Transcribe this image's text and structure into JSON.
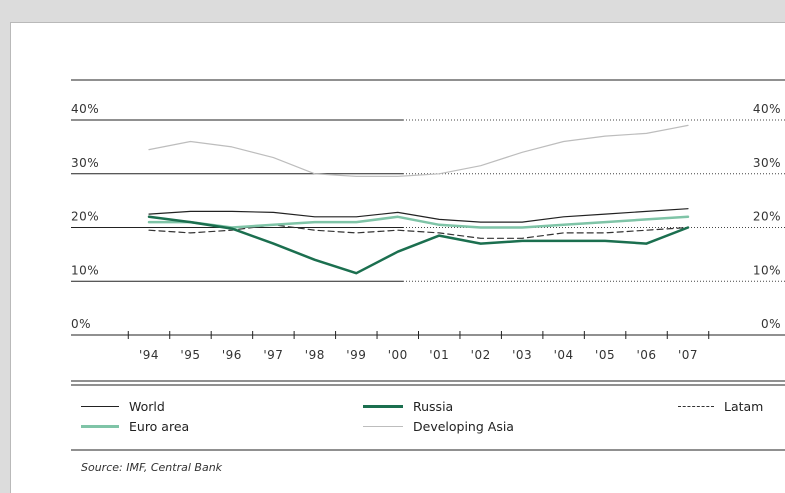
{
  "chart_data": {
    "type": "line",
    "title": "",
    "xlabel": "",
    "ylabel": "",
    "x": [
      "'94",
      "'95",
      "'96",
      "'97",
      "'98",
      "'99",
      "'00",
      "'01",
      "'02",
      "'03",
      "'04",
      "'05",
      "'06",
      "'07"
    ],
    "ylim": [
      0,
      40
    ],
    "yticks": [
      0,
      10,
      20,
      30,
      40
    ],
    "ytick_labels": [
      "0%",
      "10%",
      "20%",
      "30%",
      "40%"
    ],
    "grid": true,
    "legend_position": "bottom",
    "series": [
      {
        "name": "World",
        "color": "#222222",
        "style": "solid",
        "width": 1.2,
        "values": [
          22.5,
          23,
          23,
          22.8,
          22,
          22,
          22.8,
          21.5,
          21,
          21,
          22,
          22.5,
          23,
          23.5
        ]
      },
      {
        "name": "Russia",
        "color": "#1b6f4f",
        "style": "solid",
        "width": 2.5,
        "values": [
          22,
          21,
          19.8,
          17,
          14,
          11.5,
          15.5,
          18.5,
          17,
          17.5,
          17.5,
          17.5,
          17,
          20
        ]
      },
      {
        "name": "Latam",
        "color": "#333333",
        "style": "dashed",
        "width": 1.2,
        "values": [
          19.5,
          19,
          19.5,
          20.5,
          19.5,
          19,
          19.5,
          19,
          18,
          18,
          19,
          19,
          19.5,
          20
        ]
      },
      {
        "name": "Euro area",
        "color": "#7fc4a7",
        "style": "solid",
        "width": 2.5,
        "values": [
          21,
          21,
          20,
          20.5,
          21,
          21,
          22,
          20.5,
          20,
          20,
          20.5,
          21,
          21.5,
          22
        ]
      },
      {
        "name": "Developing Asia",
        "color": "#bdbdbd",
        "style": "solid",
        "width": 1.2,
        "values": [
          34.5,
          36,
          35,
          33,
          30,
          29.5,
          29.5,
          30,
          31.5,
          34,
          36,
          37,
          37.5,
          39
        ]
      }
    ],
    "source": "Source: IMF, Central Bank"
  },
  "legend": [
    {
      "label": "World"
    },
    {
      "label": "Russia"
    },
    {
      "label": "Latam"
    },
    {
      "label": "Euro area"
    },
    {
      "label": "Developing Asia"
    }
  ]
}
